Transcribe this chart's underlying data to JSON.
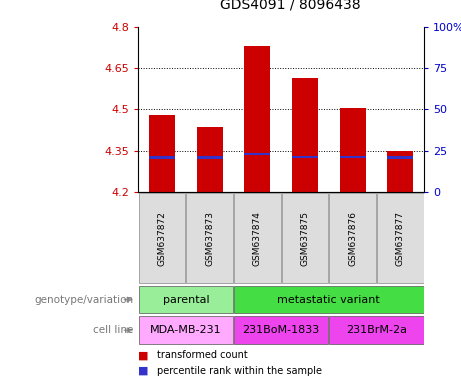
{
  "title": "GDS4091 / 8096438",
  "samples": [
    "GSM637872",
    "GSM637873",
    "GSM637874",
    "GSM637875",
    "GSM637876",
    "GSM637877"
  ],
  "bar_bottoms": [
    4.2,
    4.2,
    4.2,
    4.2,
    4.2,
    4.2
  ],
  "bar_tops": [
    4.48,
    4.435,
    4.73,
    4.615,
    4.505,
    4.35
  ],
  "percentile_values": [
    4.325,
    4.325,
    4.338,
    4.328,
    4.328,
    4.325
  ],
  "bar_color": "#cc0000",
  "percentile_color": "#3333cc",
  "ylim": [
    4.2,
    4.8
  ],
  "y_ticks": [
    4.2,
    4.35,
    4.5,
    4.65,
    4.8
  ],
  "y_tick_labels": [
    "4.2",
    "4.35",
    "4.5",
    "4.65",
    "4.8"
  ],
  "y2_ticks": [
    0,
    25,
    50,
    75,
    100
  ],
  "y2_tick_labels": [
    "0",
    "25",
    "50",
    "75",
    "100%"
  ],
  "grid_lines": [
    4.35,
    4.5,
    4.65
  ],
  "bar_width": 0.55,
  "genotype_groups": [
    {
      "label": "parental",
      "start": 0,
      "end": 1,
      "color": "#99ee99"
    },
    {
      "label": "metastatic variant",
      "start": 2,
      "end": 5,
      "color": "#44dd44"
    }
  ],
  "cell_line_groups": [
    {
      "label": "MDA-MB-231",
      "start": 0,
      "end": 1,
      "color": "#ffaaff"
    },
    {
      "label": "231BoM-1833",
      "start": 2,
      "end": 3,
      "color": "#ee44ee"
    },
    {
      "label": "231BrM-2a",
      "start": 4,
      "end": 5,
      "color": "#ee44ee"
    }
  ],
  "legend_items": [
    {
      "label": "transformed count",
      "color": "#cc0000"
    },
    {
      "label": "percentile rank within the sample",
      "color": "#3333cc"
    }
  ],
  "label_genotype": "genotype/variation",
  "label_cellline": "cell line",
  "tick_color_left": "#cc0000",
  "tick_color_right": "#0000cc",
  "sample_bg": "#dddddd",
  "arrow_color": "#999999"
}
